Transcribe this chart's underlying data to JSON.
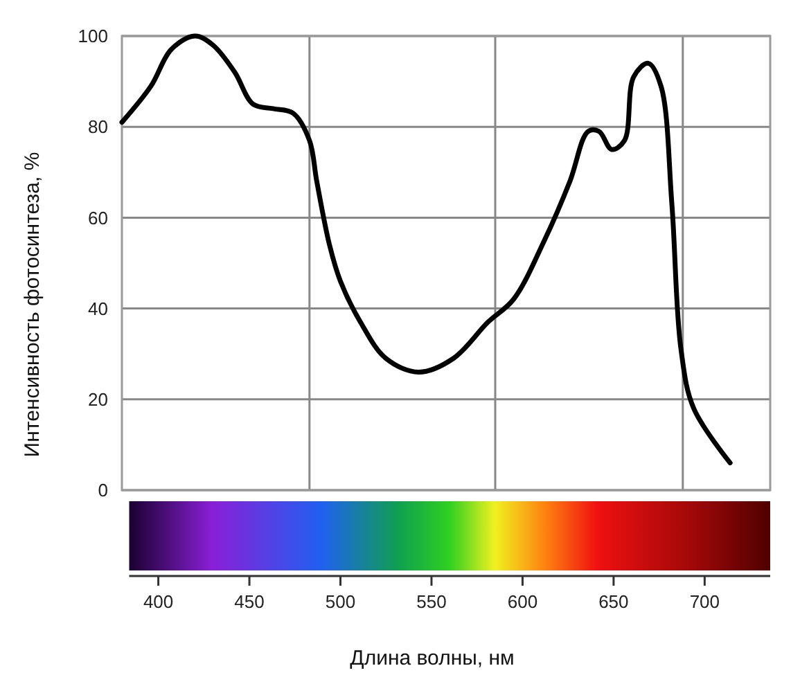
{
  "chart_data": {
    "type": "line",
    "xlabel": "Длина волны, нм",
    "ylabel": "Интенсивность фотосинтеза, %",
    "x": [
      380,
      396,
      407,
      420,
      430,
      442,
      452,
      463,
      474,
      483,
      487,
      494,
      500,
      511,
      525,
      543,
      562,
      581,
      595,
      612,
      626,
      636,
      642,
      649,
      656,
      661,
      669,
      676,
      682,
      687,
      694,
      714
    ],
    "series": [
      {
        "color": "#000000",
        "values": [
          81,
          89,
          97,
          100,
          98,
          92,
          85,
          84,
          83,
          77,
          68,
          54,
          46,
          37,
          29,
          26,
          29,
          37,
          42,
          55,
          68,
          79,
          79,
          75,
          77,
          91,
          94,
          89,
          63,
          31,
          18,
          6
        ]
      }
    ],
    "xlim": [
      380,
      736
    ],
    "ylim": [
      0,
      100
    ],
    "xticks": [
      400,
      450,
      500,
      550,
      600,
      650,
      700
    ],
    "yticks": [
      0,
      20,
      40,
      60,
      80,
      100
    ],
    "grid": "y",
    "ref_lines": [
      {
        "axis": "x",
        "value": 483,
        "color": "#888888"
      },
      {
        "axis": "x",
        "value": 585,
        "color": "#888888"
      },
      {
        "axis": "x",
        "value": 688,
        "color": "#888888"
      }
    ],
    "marker": "none",
    "line_style": "solid"
  }
}
